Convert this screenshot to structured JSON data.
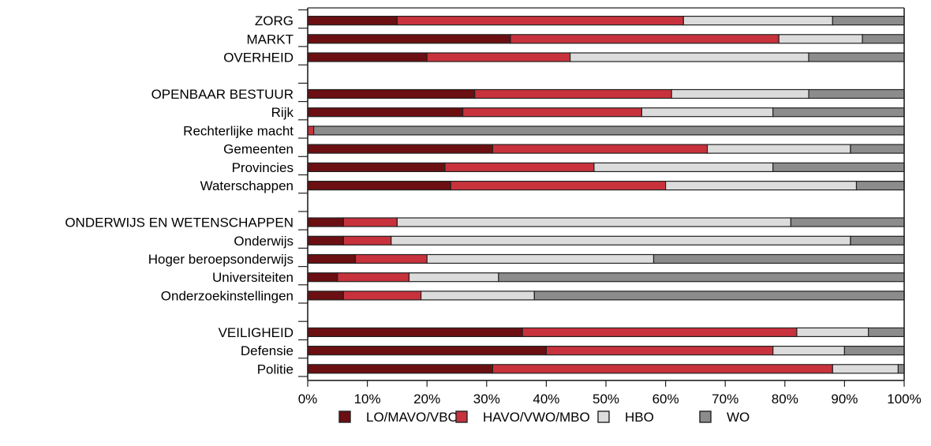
{
  "chart_data": {
    "type": "bar",
    "orientation": "horizontal",
    "stacked": true,
    "percent": true,
    "title": "",
    "xlabel": "",
    "ylabel": "",
    "xlim": [
      0,
      100
    ],
    "xticks": [
      "0%",
      "10%",
      "20%",
      "30%",
      "40%",
      "50%",
      "60%",
      "70%",
      "80%",
      "90%",
      "100%"
    ],
    "grid": false,
    "legend_position": "bottom",
    "categories": [
      "ZORG",
      "MARKT",
      "OVERHEID",
      "",
      "OPENBAAR BESTUUR",
      "Rijk",
      "Rechterlijke macht",
      "Gemeenten",
      "Provincies",
      "Waterschappen",
      "",
      "ONDERWIJS EN WETENSCHAPPEN",
      "Onderwijs",
      "Hoger beroepsonderwijs",
      "Universiteiten",
      "Onderzoekinstellingen",
      "",
      "VEILIGHEID",
      "Defensie",
      "Politie"
    ],
    "series": [
      {
        "name": "LO/MAVO/VBO",
        "color": "#6b0f12",
        "values": [
          15,
          34,
          20,
          null,
          28,
          26,
          0,
          31,
          23,
          24,
          null,
          6,
          6,
          8,
          5,
          6,
          null,
          36,
          40,
          31
        ]
      },
      {
        "name": "HAVO/VWO/MBO",
        "color": "#c8323c",
        "values": [
          48,
          45,
          24,
          null,
          33,
          30,
          1,
          36,
          25,
          36,
          null,
          9,
          8,
          12,
          12,
          13,
          null,
          46,
          38,
          57
        ]
      },
      {
        "name": "HBO",
        "color": "#dcdcdc",
        "values": [
          25,
          14,
          40,
          null,
          23,
          22,
          0,
          24,
          30,
          32,
          null,
          66,
          77,
          38,
          15,
          19,
          null,
          12,
          12,
          11
        ]
      },
      {
        "name": "WO",
        "color": "#8c8c8c",
        "values": [
          12,
          7,
          16,
          null,
          16,
          22,
          99,
          9,
          22,
          8,
          null,
          19,
          9,
          42,
          68,
          62,
          null,
          6,
          10,
          1
        ]
      }
    ]
  }
}
